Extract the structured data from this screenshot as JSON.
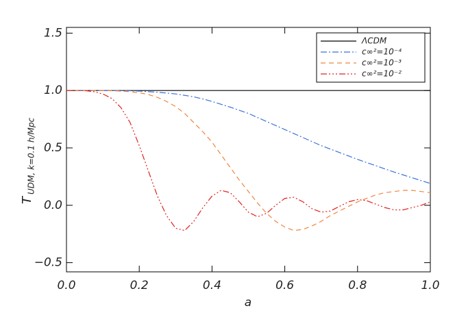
{
  "chart_data": {
    "type": "line",
    "xlabel": "a",
    "ylabel": {
      "main": "T",
      "sub": "UDM, k=0.1 h/Mpc"
    },
    "x": [
      0,
      0.025,
      0.05,
      0.075,
      0.1,
      0.125,
      0.15,
      0.175,
      0.2,
      0.225,
      0.25,
      0.275,
      0.3,
      0.325,
      0.35,
      0.375,
      0.4,
      0.425,
      0.45,
      0.475,
      0.5,
      0.525,
      0.55,
      0.575,
      0.6,
      0.625,
      0.65,
      0.675,
      0.7,
      0.725,
      0.75,
      0.775,
      0.8,
      0.825,
      0.85,
      0.875,
      0.9,
      0.925,
      0.95,
      0.975,
      1
    ],
    "series": [
      {
        "name": "ΛCDM",
        "color": "#000000",
        "dash": "none",
        "values": [
          1,
          1,
          1,
          1,
          1,
          1,
          1,
          1,
          1,
          1,
          1,
          1,
          1,
          1,
          1,
          1,
          1,
          1,
          1,
          1,
          1,
          1,
          1,
          1,
          1,
          1,
          1,
          1,
          1,
          1,
          1,
          1,
          1,
          1,
          1,
          1,
          1,
          1,
          1,
          1,
          1
        ]
      },
      {
        "name": "c∞²=10⁻⁴",
        "color": "#3a6fd8",
        "dash": "9 3 2 3",
        "values": [
          1,
          1,
          1,
          1,
          1,
          1,
          1,
          0.998,
          0.995,
          0.99,
          0.985,
          0.978,
          0.97,
          0.958,
          0.945,
          0.926,
          0.905,
          0.88,
          0.855,
          0.828,
          0.8,
          0.765,
          0.73,
          0.695,
          0.66,
          0.625,
          0.59,
          0.555,
          0.52,
          0.49,
          0.46,
          0.43,
          0.4,
          0.372,
          0.345,
          0.317,
          0.29,
          0.265,
          0.24,
          0.215,
          0.19
        ]
      },
      {
        "name": "c∞²=10⁻³",
        "color": "#f0843c",
        "dash": "7 5",
        "values": [
          1,
          1,
          1,
          1,
          1,
          0.998,
          0.995,
          0.99,
          0.98,
          0.965,
          0.94,
          0.905,
          0.86,
          0.8,
          0.72,
          0.64,
          0.55,
          0.44,
          0.33,
          0.22,
          0.12,
          0.02,
          -0.07,
          -0.14,
          -0.19,
          -0.22,
          -0.21,
          -0.18,
          -0.14,
          -0.09,
          -0.05,
          -0.01,
          0.03,
          0.06,
          0.09,
          0.11,
          0.12,
          0.13,
          0.13,
          0.12,
          0.11
        ]
      },
      {
        "name": "c∞²=10⁻²",
        "color": "#e0201c",
        "dash": "9 3 2 3 2 3 2 3",
        "values": [
          1,
          1,
          1,
          0.99,
          0.97,
          0.93,
          0.85,
          0.72,
          0.52,
          0.3,
          0.08,
          -0.09,
          -0.2,
          -0.22,
          -0.14,
          -0.02,
          0.08,
          0.13,
          0.11,
          0.03,
          -0.06,
          -0.1,
          -0.07,
          0,
          0.06,
          0.07,
          0.03,
          -0.03,
          -0.06,
          -0.05,
          -0.01,
          0.03,
          0.05,
          0.04,
          0.01,
          -0.02,
          -0.04,
          -0.04,
          -0.02,
          0,
          0.03
        ]
      }
    ],
    "xlim": [
      0,
      1
    ],
    "ylim": [
      -0.58,
      1.55
    ],
    "xticks": [
      {
        "value": 0,
        "label": "0.0"
      },
      0.2,
      0.4,
      0.6,
      0.8,
      {
        "value": 1,
        "label": "1.0"
      }
    ],
    "yticks": [
      {
        "value": -0.5,
        "label": "−0.5"
      },
      {
        "value": 0,
        "label": "0.0"
      },
      0.5,
      {
        "value": 1,
        "label": "1.0"
      },
      1.5
    ],
    "legend": "top-right"
  }
}
